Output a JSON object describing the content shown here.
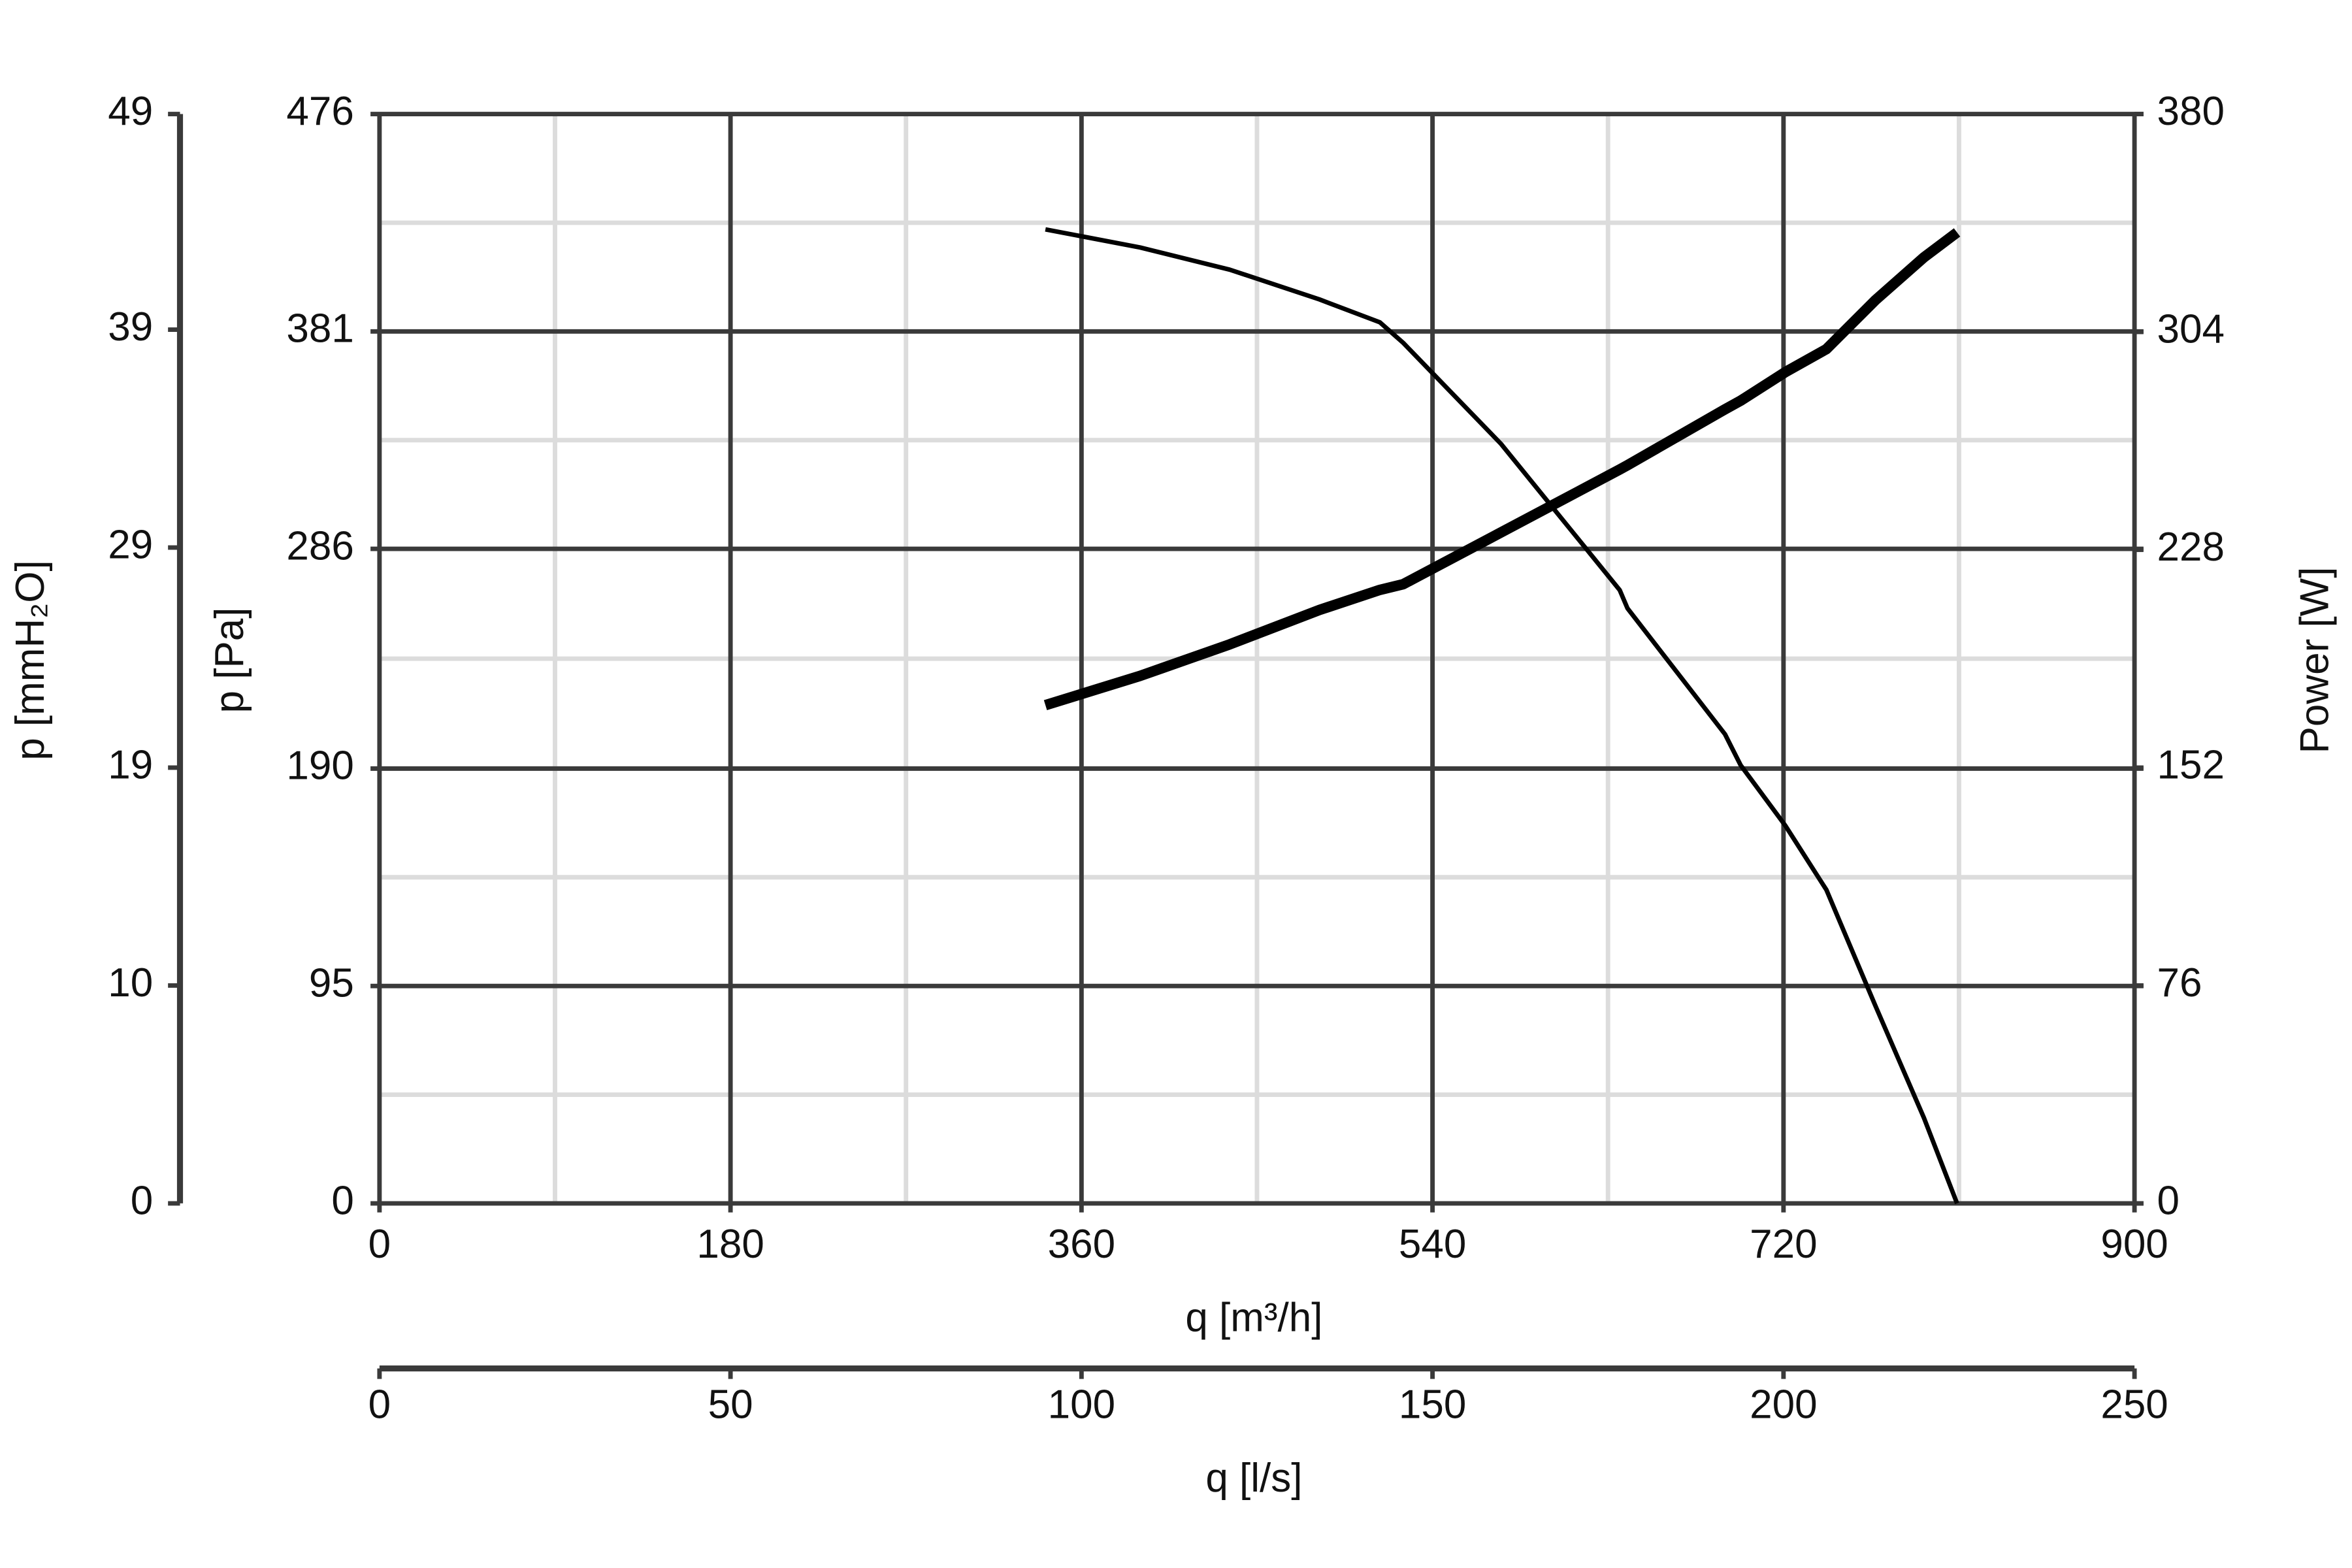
{
  "chart_data": {
    "type": "line",
    "x": [
      341.5,
      390,
      436,
      482,
      513,
      525,
      575,
      636,
      640,
      690,
      698,
      721,
      742,
      767,
      792,
      809
    ],
    "series": [
      {
        "color": "#000000",
        "values": [
          425.6,
          417.7,
          408,
          395,
          385,
          376,
          332,
          268,
          260,
          205,
          191.5,
          165,
          137,
          86.6,
          37.4,
          0
        ]
      },
      {
        "color": "#000000",
        "axis": "y2",
        "values": [
          173.8,
          184,
          195,
          207,
          214,
          216,
          234,
          256,
          257.5,
          277,
          280,
          290,
          298,
          315,
          330,
          338.7
        ]
      }
    ],
    "xlim": [
      0,
      900
    ],
    "xticks": [
      0,
      180,
      360,
      540,
      720,
      900
    ],
    "xlabel": "q [m³/h]",
    "x2lim": [
      0,
      250
    ],
    "x2ticks": [
      0,
      50,
      100,
      150,
      200,
      250
    ],
    "x2label": "q [l/s]",
    "ylim": [
      0,
      476
    ],
    "yticks": [
      0,
      95,
      190,
      286,
      381,
      476
    ],
    "ylabel": "p [Pa]",
    "y2lim": [
      0,
      380
    ],
    "y2ticks": [
      0,
      76,
      152,
      228,
      304,
      380
    ],
    "y2label": "Power [W]",
    "y3lim": [
      0,
      48.5
    ],
    "y3ticks": [
      0,
      {
        "value": 9.7,
        "label": "10"
      },
      {
        "value": 19.4,
        "label": "19"
      },
      {
        "value": 29.2,
        "label": "29"
      },
      {
        "value": 38.9,
        "label": "39"
      },
      {
        "value": 48.5,
        "label": "49"
      }
    ],
    "y3label": "p [mmH₂O]",
    "grid": true
  }
}
